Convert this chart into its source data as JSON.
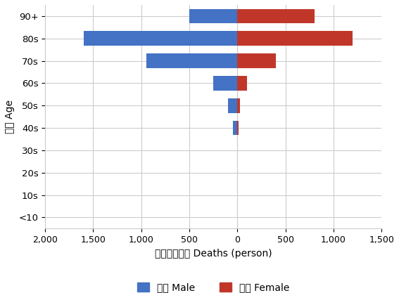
{
  "age_groups": [
    "<10",
    "10s",
    "20s",
    "30s",
    "40s",
    "50s",
    "60s",
    "70s",
    "80s",
    "90+"
  ],
  "male_values": [
    0,
    0,
    0,
    3,
    45,
    100,
    250,
    950,
    1600,
    500
  ],
  "female_values": [
    0,
    0,
    0,
    0,
    10,
    30,
    100,
    400,
    1200,
    800
  ],
  "male_color": "#4472C4",
  "female_color": "#C0372A",
  "xlabel": "死亡数（人） Deaths (person)",
  "ylabel": "年代 Age",
  "xlim": [
    -2000,
    1500
  ],
  "xticklabels": [
    "2,000",
    "1,500",
    "1,000",
    "500",
    "0",
    "500",
    "1,000",
    "1,500"
  ],
  "legend_male": "男性 Male",
  "legend_female": "女性 Female",
  "background_color": "#ffffff",
  "grid_color": "#cccccc",
  "bar_height": 0.65
}
